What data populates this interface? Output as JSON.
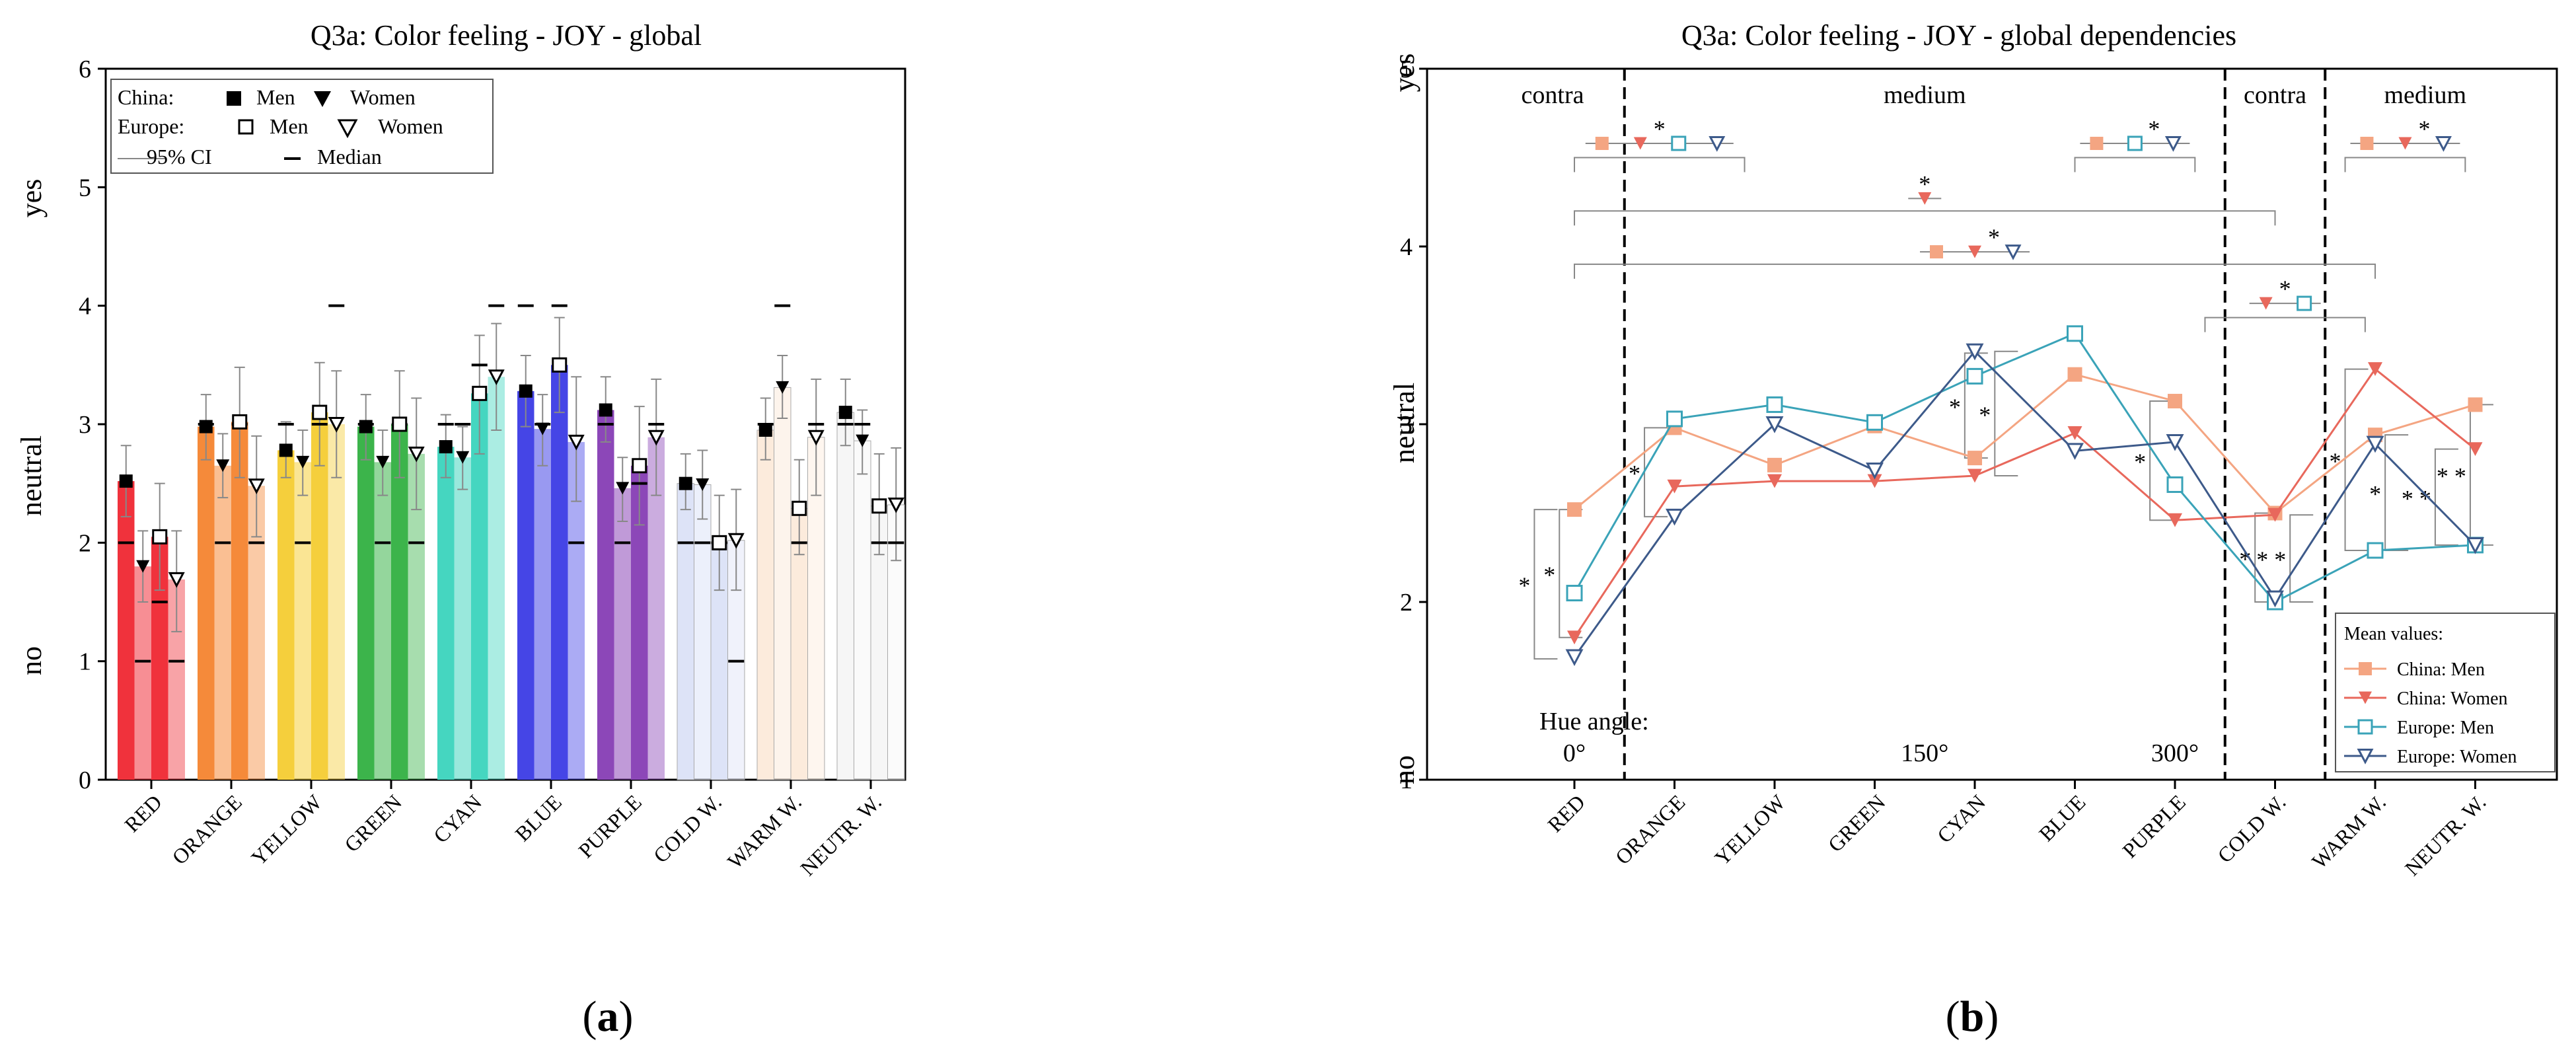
{
  "figure": {
    "panels": [
      {
        "id": "a",
        "label_open": "(",
        "label_letter": "a",
        "label_close": ")"
      },
      {
        "id": "b",
        "label_open": "(",
        "label_letter": "b",
        "label_close": ")"
      }
    ]
  },
  "chart_data": [
    {
      "id": "a",
      "type": "bar",
      "title": "Q3a: Color feeling - JOY -  global",
      "ylim": [
        0,
        6
      ],
      "yticks": [
        0,
        1,
        2,
        3,
        4,
        5,
        6
      ],
      "grid": false,
      "ylabels": {
        "yes": "yes",
        "neutral": "neutral",
        "no": "no"
      },
      "categories": [
        "RED",
        "ORANGE",
        "YELLOW",
        "GREEN",
        "CYAN",
        "BLUE",
        "PURPLE",
        "COLD W.",
        "WARM W.",
        "NEUTR. W."
      ],
      "category_colors": [
        "#f0323c",
        "#f58a3a",
        "#f5cf3c",
        "#3cb44b",
        "#45d6c0",
        "#4545e6",
        "#8c47b8",
        "#dde3f7",
        "#fcebdc",
        "#f6f6f6"
      ],
      "series_order": [
        "China: Men",
        "China: Women",
        "Europe: Men",
        "Europe: Women"
      ],
      "series": [
        {
          "name": "China: Men",
          "marker": "square-filled",
          "values": [
            2.52,
            2.98,
            2.78,
            2.98,
            2.81,
            3.28,
            3.12,
            2.5,
            2.95,
            3.1
          ],
          "ci_low": [
            2.22,
            2.7,
            2.55,
            2.7,
            2.55,
            2.98,
            2.85,
            2.28,
            2.7,
            2.82
          ],
          "ci_high": [
            2.82,
            3.25,
            3.02,
            3.25,
            3.08,
            3.58,
            3.4,
            2.75,
            3.22,
            3.38
          ],
          "median": [
            2,
            3,
            3,
            3,
            3,
            4,
            3,
            2,
            3,
            3
          ],
          "opacity": 1.0
        },
        {
          "name": "China: Women",
          "marker": "triangle-filled",
          "values": [
            1.8,
            2.65,
            2.68,
            2.68,
            2.72,
            2.96,
            2.46,
            2.49,
            3.31,
            2.86
          ],
          "ci_low": [
            1.5,
            2.38,
            2.4,
            2.4,
            2.45,
            2.65,
            2.18,
            2.2,
            3.05,
            2.58
          ],
          "ci_high": [
            2.1,
            2.92,
            2.95,
            2.95,
            2.98,
            3.25,
            2.72,
            2.78,
            3.58,
            3.12
          ],
          "median": [
            1,
            2,
            2,
            2,
            3,
            3,
            2,
            2,
            4,
            3
          ],
          "opacity": 0.55
        },
        {
          "name": "Europe: Men",
          "marker": "square-open",
          "values": [
            2.05,
            3.02,
            3.1,
            3.0,
            3.26,
            3.5,
            2.65,
            2.0,
            2.29,
            2.31
          ],
          "ci_low": [
            1.6,
            2.55,
            2.65,
            2.55,
            2.75,
            3.1,
            2.15,
            1.6,
            1.9,
            1.9
          ],
          "ci_high": [
            2.5,
            3.48,
            3.52,
            3.45,
            3.75,
            3.9,
            3.15,
            2.4,
            2.7,
            2.75
          ],
          "median": [
            1.5,
            3,
            3,
            3,
            3.5,
            4,
            2.5,
            2,
            2,
            2
          ],
          "opacity": 1.0
        },
        {
          "name": "Europe: Women",
          "marker": "triangle-open",
          "values": [
            1.69,
            2.48,
            3.0,
            2.75,
            3.4,
            2.85,
            2.89,
            2.02,
            2.89,
            2.32
          ],
          "ci_low": [
            1.25,
            2.05,
            2.55,
            2.28,
            2.95,
            2.35,
            2.4,
            1.6,
            2.4,
            1.85
          ],
          "ci_high": [
            2.1,
            2.9,
            3.45,
            3.22,
            3.85,
            3.4,
            3.38,
            2.45,
            3.38,
            2.8
          ],
          "median": [
            1,
            2,
            4,
            2,
            4,
            2,
            3,
            1,
            3,
            2
          ],
          "opacity": 0.45
        }
      ],
      "legend": {
        "placement": "top-left",
        "china_label": "China:",
        "europe_label": "Europe:",
        "men": "Men",
        "women": "Women",
        "ci": "95% CI",
        "median": "Median"
      }
    },
    {
      "id": "b",
      "type": "line",
      "title": "Q3a: Color feeling - JOY - global dependencies",
      "ylim": [
        1,
        5
      ],
      "yticks": [
        1,
        2,
        3,
        4,
        5
      ],
      "grid": false,
      "ylabels": {
        "yes": "yes",
        "neutral": "neutral",
        "no": "no"
      },
      "categories": [
        "RED",
        "ORANGE",
        "YELLOW",
        "GREEN",
        "CYAN",
        "BLUE",
        "PURPLE",
        "COLD W.",
        "WARM W.",
        "NEUTR. W."
      ],
      "series": [
        {
          "name": "China: Men",
          "color": "#f4a582",
          "marker": "square-filled",
          "values": [
            2.52,
            2.98,
            2.77,
            2.99,
            2.81,
            3.28,
            3.13,
            2.5,
            2.94,
            3.11
          ]
        },
        {
          "name": "China: Women",
          "color": "#e8685c",
          "marker": "triangle-filled",
          "values": [
            1.8,
            2.65,
            2.68,
            2.68,
            2.71,
            2.95,
            2.46,
            2.49,
            3.31,
            2.86
          ]
        },
        {
          "name": "Europe: Men",
          "color": "#3aa3b8",
          "marker": "square-open",
          "values": [
            2.05,
            3.03,
            3.11,
            3.01,
            3.27,
            3.51,
            2.66,
            2.0,
            2.29,
            2.32
          ]
        },
        {
          "name": "Europe: Women",
          "color": "#3d5a8a",
          "marker": "triangle-open",
          "values": [
            1.69,
            2.48,
            3.0,
            2.74,
            3.41,
            2.85,
            2.9,
            2.02,
            2.89,
            2.32
          ]
        }
      ],
      "legend": {
        "placement": "bottom-right",
        "title": "Mean values:"
      },
      "regions": [
        {
          "label": "contra",
          "from": -0.5,
          "to": 0.5
        },
        {
          "label": "medium",
          "from": 0.5,
          "to": 6.5
        },
        {
          "label": "contra",
          "from": 6.5,
          "to": 7.5
        },
        {
          "label": "medium",
          "from": 7.5,
          "to": 9.5
        }
      ],
      "boundaries": [
        0.5,
        6.5,
        7.5
      ],
      "hue_label": "Hue angle:",
      "hue_ticks": [
        {
          "label": "0°",
          "at": 0
        },
        {
          "label": "150°",
          "at": 3.5
        },
        {
          "label": "300°",
          "at": 6
        }
      ],
      "significance_groups": [
        {
          "markers": [
            "China: Men",
            "China: Women",
            "Europe: Men",
            "Europe: Women"
          ],
          "star": "*",
          "star_between": 1,
          "y": 4.58,
          "bracket_from": 0,
          "bracket_to": 1.7,
          "bracket_y": 4.5
        },
        {
          "markers": [
            "China: Men",
            "Europe: Men",
            "Europe: Women"
          ],
          "star": "*",
          "star_between": 1,
          "y": 4.58,
          "bracket_from": 5,
          "bracket_to": 6.2,
          "bracket_y": 4.5
        },
        {
          "markers": [
            "China: Men",
            "China: Women",
            "Europe: Women"
          ],
          "star": "*",
          "star_between": 1,
          "y": 4.58,
          "bracket_from": 7.7,
          "bracket_to": 8.9,
          "bracket_y": 4.5
        },
        {
          "markers": [
            "China: Women"
          ],
          "star": "*",
          "star_between": 0,
          "y": 4.27,
          "bracket_from": 0,
          "bracket_to": 7.0,
          "bracket_y": 4.2
        },
        {
          "markers": [
            "China: Men",
            "China: Women",
            "Europe: Women"
          ],
          "star": "*",
          "star_between": 1,
          "y": 3.97,
          "bracket_from": 0,
          "bracket_to": 8.0,
          "bracket_y": 3.9
        },
        {
          "markers": [
            "China: Women",
            "Europe: Men"
          ],
          "star": "*",
          "star_between": 0,
          "y": 3.68,
          "bracket_from": 6.3,
          "bracket_to": 7.9,
          "bracket_y": 3.6
        }
      ],
      "side_brackets": [
        {
          "at": -0.4,
          "y1": 1.68,
          "y2": 2.52,
          "stars": "*"
        },
        {
          "at": -0.15,
          "y1": 1.8,
          "y2": 2.52,
          "stars": "*"
        },
        {
          "at": 0.7,
          "y1": 2.48,
          "y2": 2.98,
          "stars": "*"
        },
        {
          "at": 3.9,
          "y1": 2.81,
          "y2": 3.4,
          "stars": "*"
        },
        {
          "at": 4.2,
          "y1": 2.71,
          "y2": 3.41,
          "stars": "*"
        },
        {
          "at": 5.75,
          "y1": 2.46,
          "y2": 3.13,
          "stars": "*"
        },
        {
          "at": 6.8,
          "y1": 2.0,
          "y2": 2.5,
          "stars": "*"
        },
        {
          "at": 7.15,
          "y1": 2.0,
          "y2": 2.49,
          "stars": "* *"
        },
        {
          "at": 7.7,
          "y1": 2.29,
          "y2": 3.31,
          "stars": "*"
        },
        {
          "at": 8.1,
          "y1": 2.29,
          "y2": 2.94,
          "stars": "*"
        },
        {
          "at": 8.6,
          "y1": 2.32,
          "y2": 2.86,
          "stars": "* *"
        },
        {
          "at": 8.95,
          "y1": 2.32,
          "y2": 3.11,
          "stars": "* *"
        }
      ]
    }
  ]
}
